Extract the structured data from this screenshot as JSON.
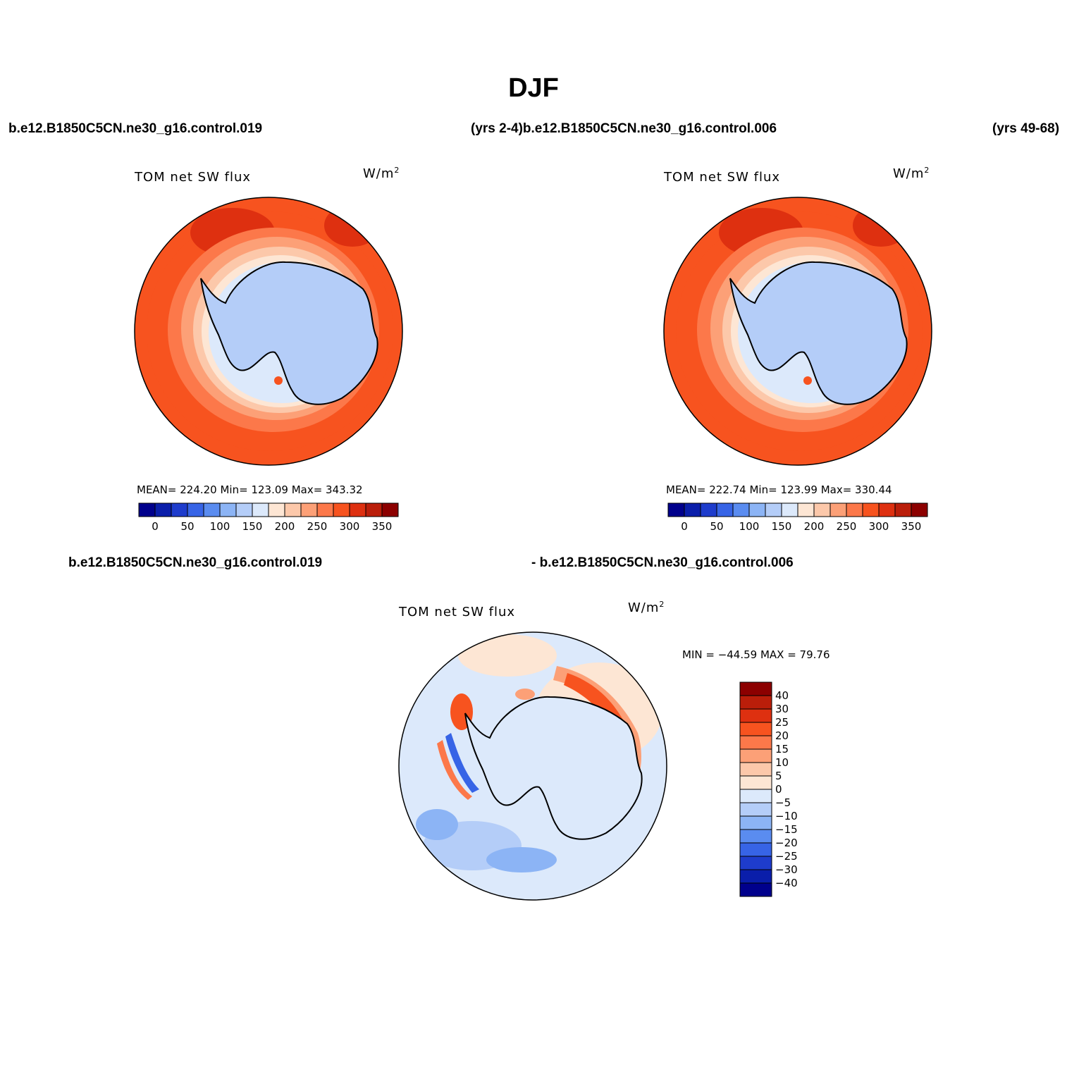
{
  "title": "DJF",
  "header": {
    "left_case": "b.e12.B1850C5CN.ne30_g16.control.019",
    "left_years_right_case": "(yrs 2-4)b.e12.B1850C5CN.ne30_g16.control.006",
    "right_years": "(yrs 49-68)",
    "diff_case_a": "b.e12.B1850C5CN.ne30_g16.control.019",
    "diff_case_b": "- b.e12.B1850C5CN.ne30_g16.control.006"
  },
  "panels": [
    {
      "id": "panel-1",
      "title": "TOM net SW flux",
      "units": "W/m",
      "units_sup": "2",
      "stats": "MEAN= 224.20   Min= 123.09   Max= 343.32"
    },
    {
      "id": "panel-2",
      "title": "TOM net SW flux",
      "units": "W/m",
      "units_sup": "2",
      "stats": "MEAN= 222.74   Min= 123.99   Max= 330.44"
    },
    {
      "id": "panel-diff",
      "title": "TOM net SW flux",
      "units": "W/m",
      "units_sup": "2",
      "stats": "MIN = −44.59 MAX =  79.76"
    }
  ],
  "colorbar_abs": {
    "colors": [
      "#00008c",
      "#0a1eaa",
      "#1e3ccc",
      "#3764e6",
      "#5a8cf0",
      "#8cb4f5",
      "#b4cdf8",
      "#dce9fb",
      "#fde6d4",
      "#fcc8aa",
      "#fca077",
      "#fc784a",
      "#f7531f",
      "#de3010",
      "#ba1e0a",
      "#8c0000"
    ],
    "tick_labels": [
      "0",
      "50",
      "100",
      "150",
      "200",
      "250",
      "300",
      "350"
    ]
  },
  "colorbar_diff": {
    "colors": [
      "#8c0000",
      "#ba1e0a",
      "#de3010",
      "#f7531f",
      "#fc784a",
      "#fca077",
      "#fcc8aa",
      "#fde6d4",
      "#dce9fb",
      "#b4cdf8",
      "#8cb4f5",
      "#5a8cf0",
      "#3764e6",
      "#1e3ccc",
      "#0a1eaa",
      "#00008c"
    ],
    "tick_labels": [
      "40",
      "30",
      "25",
      "20",
      "15",
      "10",
      "5",
      "0",
      "−5",
      "−10",
      "−15",
      "−20",
      "−25",
      "−30",
      "−40"
    ]
  }
}
